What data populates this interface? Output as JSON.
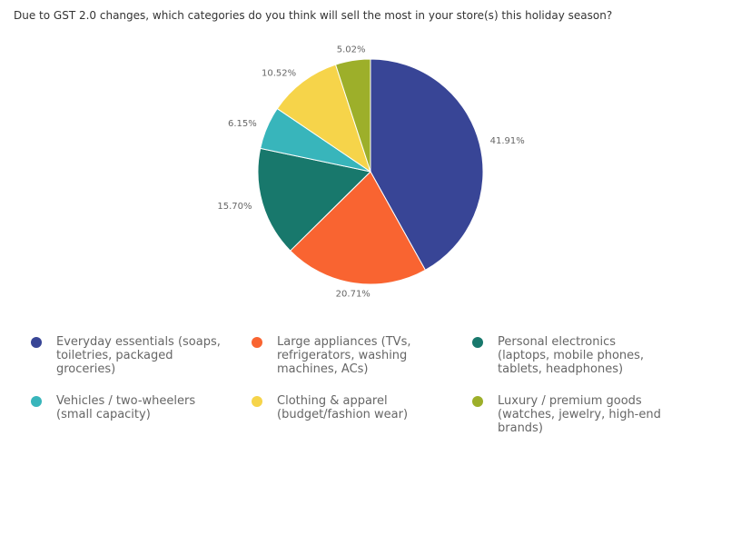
{
  "question": "Due to GST 2.0 changes, which categories do you think will sell the most in your store(s) this holiday season?",
  "chart_data": {
    "type": "pie",
    "title": "",
    "slices": [
      {
        "label": "Everyday essentials (soaps, toiletries, packaged groceries)",
        "value": 41.91,
        "value_label": "41.91%",
        "color": "#384596"
      },
      {
        "label": "Large appliances (TVs, refrigerators, washing machines, ACs)",
        "value": 20.71,
        "value_label": "20.71%",
        "color": "#f96431"
      },
      {
        "label": "Personal electronics (laptops, mobile phones, tablets, headphones)",
        "value": 15.7,
        "value_label": "15.70%",
        "color": "#18786c"
      },
      {
        "label": "Vehicles / two-wheelers (small capacity)",
        "value": 6.15,
        "value_label": "6.15%",
        "color": "#38b5bb"
      },
      {
        "label": "Clothing & apparel (budget/fashion wear)",
        "value": 10.52,
        "value_label": "10.52%",
        "color": "#f6d44a"
      },
      {
        "label": "Luxury / premium goods (watches, jewelry, high-end brands)",
        "value": 5.02,
        "value_label": "5.02%",
        "color": "#9daf2a"
      }
    ],
    "legend_position": "bottom"
  }
}
